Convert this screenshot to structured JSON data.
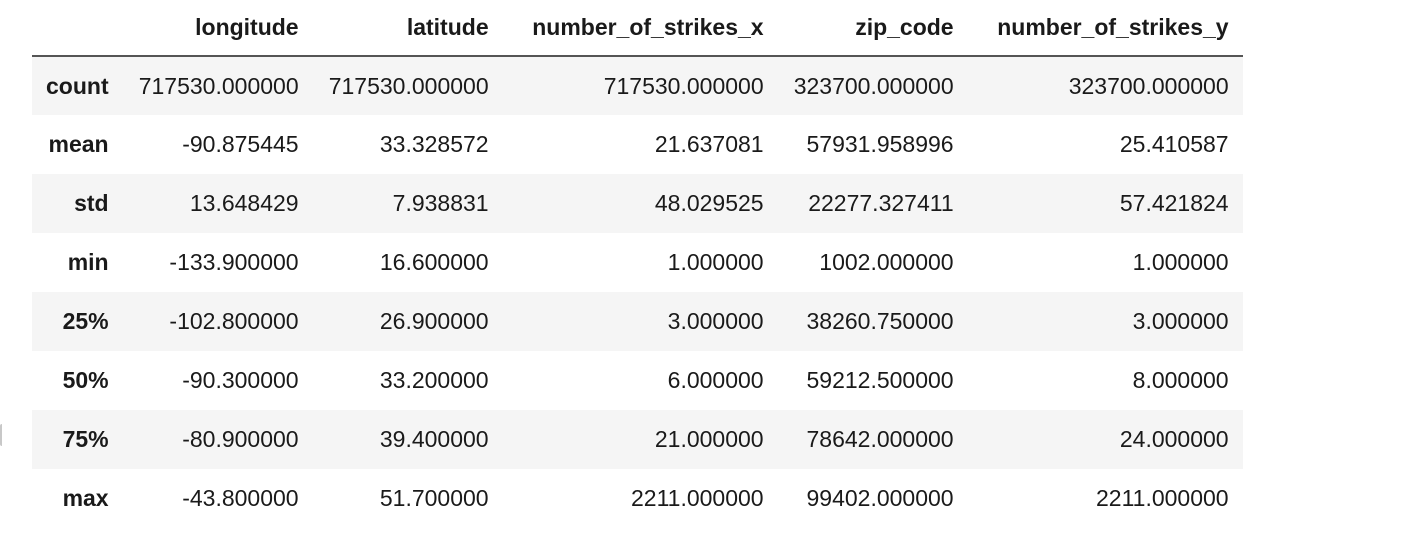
{
  "table": {
    "index_header": "",
    "columns": [
      "longitude",
      "latitude",
      "number_of_strikes_x",
      "zip_code",
      "number_of_strikes_y"
    ],
    "rows": [
      {
        "label": "count",
        "values": [
          "717530.000000",
          "717530.000000",
          "717530.000000",
          "323700.000000",
          "323700.000000"
        ]
      },
      {
        "label": "mean",
        "values": [
          "-90.875445",
          "33.328572",
          "21.637081",
          "57931.958996",
          "25.410587"
        ]
      },
      {
        "label": "std",
        "values": [
          "13.648429",
          "7.938831",
          "48.029525",
          "22277.327411",
          "57.421824"
        ]
      },
      {
        "label": "min",
        "values": [
          "-133.900000",
          "16.600000",
          "1.000000",
          "1002.000000",
          "1.000000"
        ]
      },
      {
        "label": "25%",
        "values": [
          "-102.800000",
          "26.900000",
          "3.000000",
          "38260.750000",
          "3.000000"
        ]
      },
      {
        "label": "50%",
        "values": [
          "-90.300000",
          "33.200000",
          "6.000000",
          "59212.500000",
          "8.000000"
        ]
      },
      {
        "label": "75%",
        "values": [
          "-80.900000",
          "39.400000",
          "21.000000",
          "78642.000000",
          "24.000000"
        ]
      },
      {
        "label": "max",
        "values": [
          "-43.800000",
          "51.700000",
          "2211.000000",
          "99402.000000",
          "2211.000000"
        ]
      }
    ]
  },
  "colors": {
    "stripe": "#f5f5f5",
    "background": "#ffffff",
    "text": "#1a1a1a",
    "header_rule": "#555555"
  }
}
